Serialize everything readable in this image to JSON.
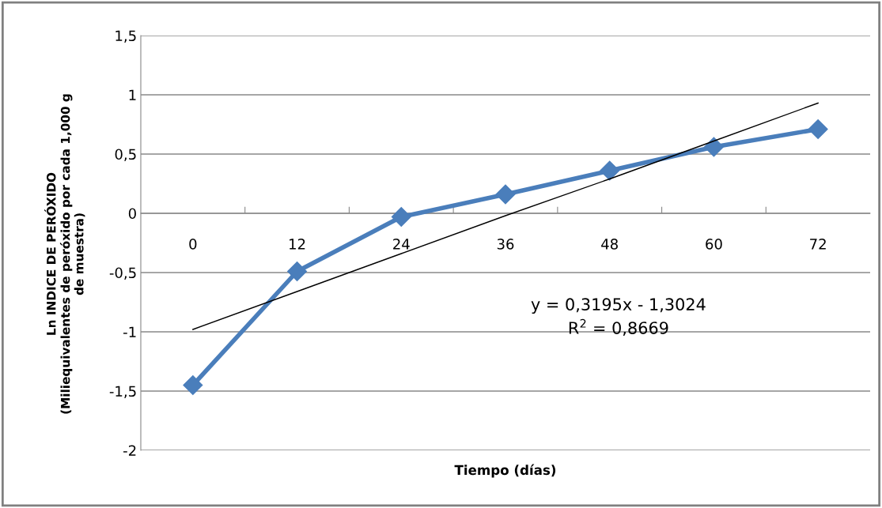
{
  "chart_data": {
    "type": "line",
    "xlabel": "Tiempo (días)",
    "ylabel": "Ln INDICE DE PERÓXIDO\n(Miliequivalentes de peróxido por cada 1,000 g\nde muestra)",
    "categories": [
      "0",
      "12",
      "24",
      "36",
      "48",
      "60",
      "72"
    ],
    "series": [
      {
        "color": "#4a7ebb",
        "marker": "diamond",
        "values": [
          -1.45,
          -0.49,
          -0.03,
          0.16,
          0.36,
          0.56,
          0.71
        ]
      },
      {
        "color": "#000000",
        "marker": "none",
        "values": [
          -0.98,
          -0.66,
          -0.34,
          -0.02,
          0.29,
          0.61,
          0.93
        ]
      }
    ],
    "ylim": [
      -2,
      1.5
    ],
    "yticks": [
      {
        "value": -2,
        "label": "-2"
      },
      {
        "value": -1.5,
        "label": "-1,5"
      },
      {
        "value": -1,
        "label": "-1"
      },
      {
        "value": -0.5,
        "label": "-0,5"
      },
      {
        "value": 0,
        "label": "0"
      },
      {
        "value": 0.5,
        "label": "0,5"
      },
      {
        "value": 1,
        "label": "1"
      },
      {
        "value": 1.5,
        "label": "1,5"
      }
    ],
    "grid": "y",
    "line_style": "solid",
    "annotations": [
      "y = 0,3195x - 1,3024\nR$^{2}$ = 0,8669"
    ]
  }
}
